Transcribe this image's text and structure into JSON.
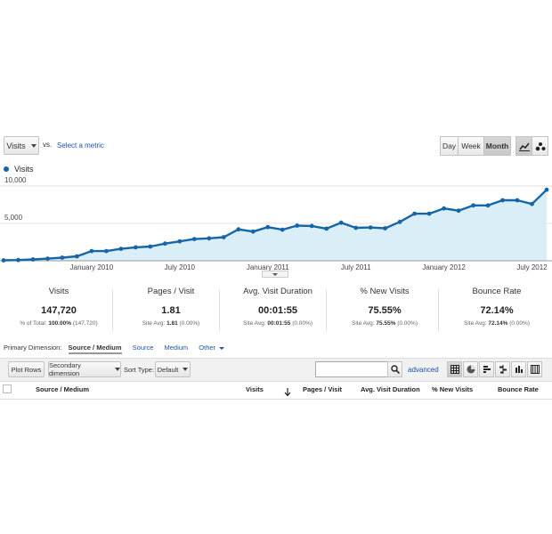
{
  "controls": {
    "metric_dropdown": "Visits",
    "vs_label": "vs.",
    "select_metric_link": "Select a metric",
    "time_buttons": [
      "Day",
      "Week",
      "Month"
    ],
    "active_time": "Month"
  },
  "legend": {
    "series_name": "Visits",
    "color": "#1565a9"
  },
  "chart_data": {
    "type": "area",
    "x_tick_labels": [
      "January 2010",
      "July 2010",
      "January 2011",
      "July 2011",
      "January 2012",
      "July 2012"
    ],
    "y_tick_labels": [
      "10,000",
      "5,000"
    ],
    "ylim": [
      0,
      10000
    ],
    "series": [
      {
        "name": "Visits",
        "values": [
          60,
          90,
          180,
          280,
          420,
          600,
          1300,
          1300,
          1600,
          1800,
          1900,
          2300,
          2600,
          2900,
          3000,
          3150,
          4200,
          3900,
          4500,
          4150,
          4700,
          4650,
          4300,
          5100,
          4400,
          4450,
          4350,
          5200,
          6300,
          6300,
          7000,
          6700,
          7400,
          7400,
          8100,
          8100,
          7600,
          9500
        ]
      }
    ],
    "grid": true,
    "legend": "top-left"
  },
  "metrics": [
    {
      "title": "Visits",
      "value": "147,720",
      "sub_prefix": "% of Total:",
      "sub_bold": "100.00%",
      "sub_suffix": "(147,720)"
    },
    {
      "title": "Pages / Visit",
      "value": "1.81",
      "sub_prefix": "Site Avg:",
      "sub_bold": "1.81",
      "sub_suffix": "(0.00%)"
    },
    {
      "title": "Avg. Visit Duration",
      "value": "00:01:55",
      "sub_prefix": "Site Avg:",
      "sub_bold": "00:01:55",
      "sub_suffix": "(0.00%)"
    },
    {
      "title": "% New Visits",
      "value": "75.55%",
      "sub_prefix": "Site Avg:",
      "sub_bold": "75.55%",
      "sub_suffix": "(0.00%)"
    },
    {
      "title": "Bounce Rate",
      "value": "72.14%",
      "sub_prefix": "Site Avg:",
      "sub_bold": "72.14%",
      "sub_suffix": "(0.00%)"
    }
  ],
  "dimensions": {
    "label": "Primary Dimension:",
    "active": "Source / Medium",
    "options": [
      "Source",
      "Medium",
      "Other"
    ]
  },
  "toolbar": {
    "plot_rows": "Plot Rows",
    "secondary_dimension": "Secondary dimension",
    "sort_type_label": "Sort Type:",
    "sort_type_value": "Default",
    "search_value": "",
    "advanced": "advanced"
  },
  "table": {
    "headers": [
      "Source / Medium",
      "Visits",
      "Pages / Visit",
      "Avg. Visit Duration",
      "% New Visits",
      "Bounce Rate"
    ]
  }
}
